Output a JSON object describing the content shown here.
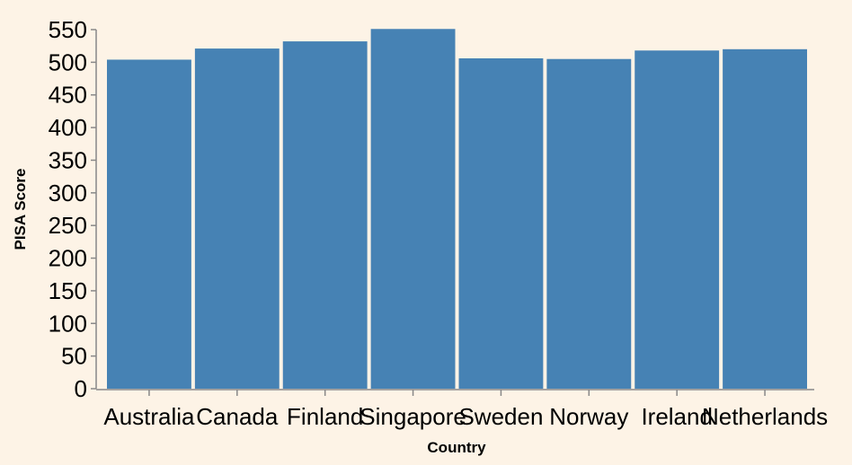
{
  "chart_data": {
    "type": "bar",
    "categories": [
      "Australia",
      "Canada",
      "Finland",
      "Singapore",
      "Sweden",
      "Norway",
      "Ireland",
      "Netherlands"
    ],
    "values": [
      504,
      521,
      532,
      551,
      506,
      505,
      518,
      520
    ],
    "xlabel": "Country",
    "ylabel": "PISA Score",
    "ylim": [
      0,
      550
    ],
    "yticks": [
      0,
      50,
      100,
      150,
      200,
      250,
      300,
      350,
      400,
      450,
      500,
      550
    ],
    "grid": false,
    "bar_color": "#4682b4",
    "background": "#fdf3e6",
    "axis_color": "#888888"
  }
}
